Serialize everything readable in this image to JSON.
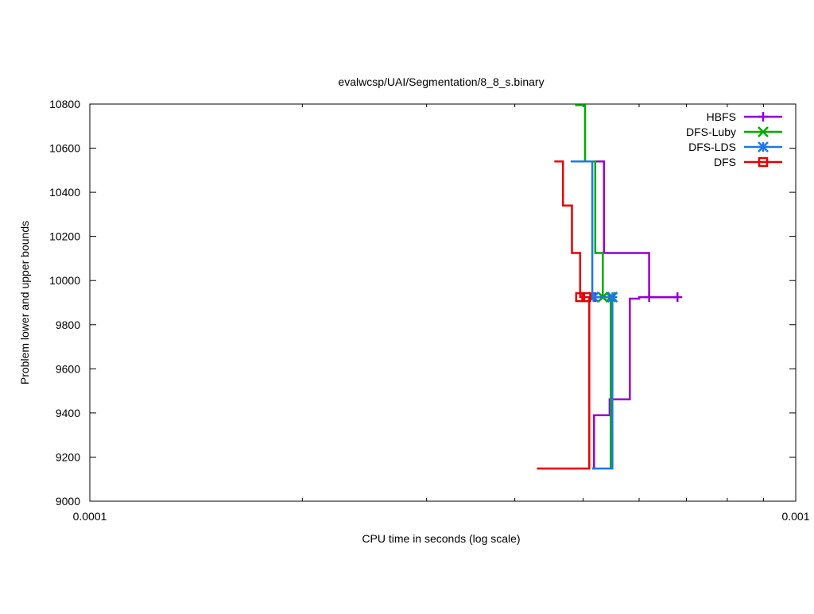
{
  "chart_data": {
    "type": "line",
    "title": "evalwcsp/UAI/Segmentation/8_8_s.binary",
    "xlabel": "CPU time in seconds (log scale)",
    "ylabel": "Problem lower and upper bounds",
    "xscale": "log",
    "xlim": [
      0.0001,
      0.001
    ],
    "ylim": [
      9000,
      10800
    ],
    "x_tick_labels": [
      {
        "value": 0.0001,
        "label": "0.0001"
      },
      {
        "value": 0.001,
        "label": "0.001"
      }
    ],
    "y_ticks": [
      9000,
      9200,
      9400,
      9600,
      9800,
      10000,
      10200,
      10400,
      10600,
      10800
    ],
    "legend_position": "top-right",
    "grid": false,
    "series": [
      {
        "name": "HBFS",
        "color": "#9400d3",
        "marker": "plus",
        "lower": [
          [
            0.000515,
            9148
          ],
          [
            0.000518,
            9148
          ],
          [
            0.000518,
            9390
          ],
          [
            0.000545,
            9390
          ],
          [
            0.000545,
            9462
          ],
          [
            0.000582,
            9462
          ],
          [
            0.000582,
            9918
          ],
          [
            0.0006,
            9918
          ],
          [
            0.0006,
            9925
          ],
          [
            0.00068,
            9925
          ]
        ],
        "upper": [
          [
            0.000515,
            10540
          ],
          [
            0.000535,
            10540
          ],
          [
            0.000535,
            10125
          ],
          [
            0.00062,
            10125
          ],
          [
            0.00062,
            9925
          ],
          [
            0.00068,
            9925
          ]
        ],
        "markers": [
          [
            0.00052,
            9925
          ],
          [
            0.00062,
            9925
          ],
          [
            0.00068,
            9925
          ]
        ]
      },
      {
        "name": "DFS-Luby",
        "color": "#00aa00",
        "marker": "x",
        "lower": [
          [
            0.000547,
            9148
          ],
          [
            0.000547,
            9925
          ]
        ],
        "upper": [
          [
            0.000487,
            10795
          ],
          [
            0.000503,
            10795
          ],
          [
            0.000503,
            10540
          ],
          [
            0.00052,
            10540
          ],
          [
            0.00052,
            10125
          ],
          [
            0.000533,
            10125
          ],
          [
            0.000533,
            9925
          ],
          [
            0.000547,
            9925
          ]
        ],
        "markers": [
          [
            0.000533,
            9925
          ],
          [
            0.000547,
            9925
          ]
        ]
      },
      {
        "name": "DFS-LDS",
        "color": "#1e78e6",
        "marker": "star",
        "lower": [
          [
            0.000515,
            9148
          ],
          [
            0.00055,
            9148
          ],
          [
            0.00055,
            9925
          ]
        ],
        "upper": [
          [
            0.00048,
            10540
          ],
          [
            0.000515,
            10540
          ],
          [
            0.000515,
            9925
          ],
          [
            0.00055,
            9925
          ]
        ],
        "markers": [
          [
            0.000517,
            9925
          ],
          [
            0.00055,
            9925
          ]
        ]
      },
      {
        "name": "DFS",
        "color": "#e60000",
        "marker": "square",
        "lower": [
          [
            0.00043,
            9148
          ],
          [
            0.00051,
            9148
          ],
          [
            0.00051,
            9925
          ]
        ],
        "upper": [
          [
            0.000455,
            10540
          ],
          [
            0.000468,
            10540
          ],
          [
            0.000468,
            10340
          ],
          [
            0.000482,
            10340
          ],
          [
            0.000482,
            10125
          ],
          [
            0.000495,
            10125
          ],
          [
            0.000495,
            9925
          ],
          [
            0.00051,
            9925
          ]
        ],
        "markers": [
          [
            0.000495,
            9925
          ],
          [
            0.000505,
            9925
          ]
        ]
      }
    ]
  }
}
